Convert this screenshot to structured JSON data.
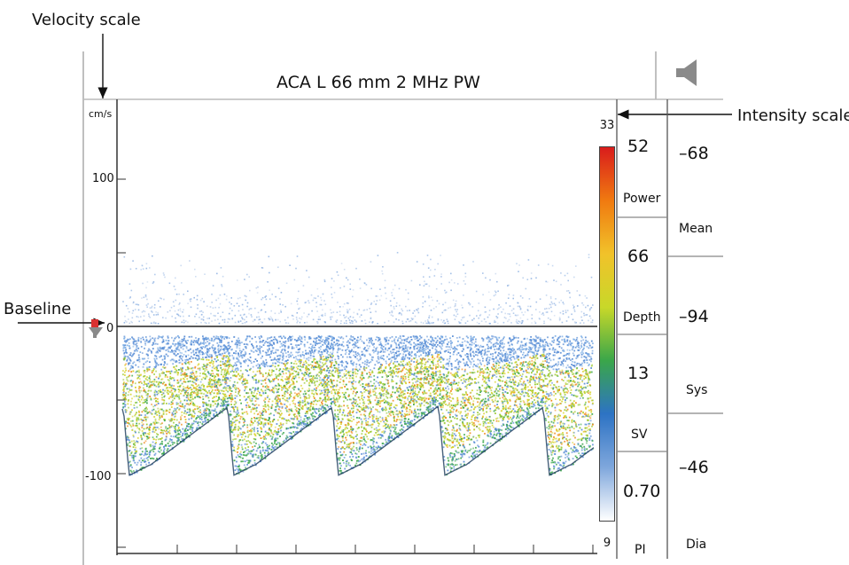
{
  "callouts": {
    "velocity_scale": "Velocity scale",
    "intensity_scale": "Intensity scale",
    "baseline": "Baseline"
  },
  "header": {
    "title": "ACA L 66 mm 2 MHz PW",
    "speaker_icon": "speaker-icon"
  },
  "velocity_axis": {
    "unit": "cm/s",
    "ticks": [
      {
        "value": 100,
        "label": "100"
      },
      {
        "value": 0,
        "label": "0"
      },
      {
        "value": -100,
        "label": "-100"
      }
    ]
  },
  "intensity_scale": {
    "top": "33",
    "bottom": "9"
  },
  "params": {
    "power": {
      "value": "52",
      "label": "Power"
    },
    "depth": {
      "value": "66",
      "label": "Depth"
    },
    "sv": {
      "value": "13",
      "label": "SV"
    },
    "pi": {
      "value": "0.70",
      "label": "PI"
    }
  },
  "measurements": {
    "mean": {
      "value": "–68",
      "label": "Mean"
    },
    "sys": {
      "value": "–94",
      "label": "Sys"
    },
    "dia": {
      "value": "–46",
      "label": "Dia"
    }
  },
  "colors": {
    "intensity_gradient": [
      "#d91c1c",
      "#f07a10",
      "#f1c22a",
      "#c8d829",
      "#3aa64a",
      "#2d73c4",
      "#7fa7dc",
      "#ffffff"
    ],
    "spectrum_low": "#5b8fd6",
    "spectrum_mid": "#9bc930",
    "spectrum_high": "#f08a1c",
    "spectrum_edge": "#1a3a5a",
    "baseline_marker": "#d93030"
  }
}
